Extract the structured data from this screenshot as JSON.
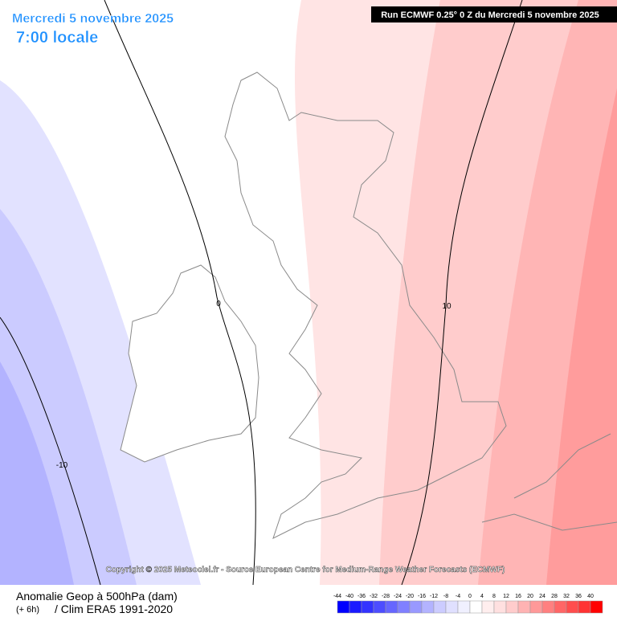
{
  "header": {
    "date": "Mercredi 5 novembre 2025",
    "time": "7:00 locale",
    "run": "Run ECMWF 0.25° 0 Z du Mercredi 5 novembre 2025"
  },
  "map": {
    "contour_labels": [
      "0",
      "10",
      "-10"
    ],
    "copyright": "Copyright © 2025 Meteociel.fr - Source European Centre for Medium-Range Weather Forecasts (ECMWF)"
  },
  "footer": {
    "title": "Anomalie Geop à 500hPa (dam)",
    "lead": "(+ 6h)",
    "clim": "/ Clim ERA5 1991-2020"
  },
  "colorbar": {
    "ticks": [
      -44,
      -40,
      -36,
      -32,
      -28,
      -24,
      -20,
      -16,
      -12,
      -8,
      -4,
      0,
      4,
      8,
      12,
      16,
      20,
      24,
      28,
      32,
      36,
      40
    ],
    "colors": [
      "#0000ff",
      "#1a1aff",
      "#3333ff",
      "#4d4dff",
      "#6666ff",
      "#8080ff",
      "#9999ff",
      "#b3b3ff",
      "#ccccff",
      "#e0e0ff",
      "#f0f0ff",
      "#ffffff",
      "#ffeeee",
      "#ffe0e0",
      "#ffcccc",
      "#ffb3b3",
      "#ff9999",
      "#ff8080",
      "#ff6666",
      "#ff4d4d",
      "#ff3333",
      "#ff0000"
    ]
  }
}
